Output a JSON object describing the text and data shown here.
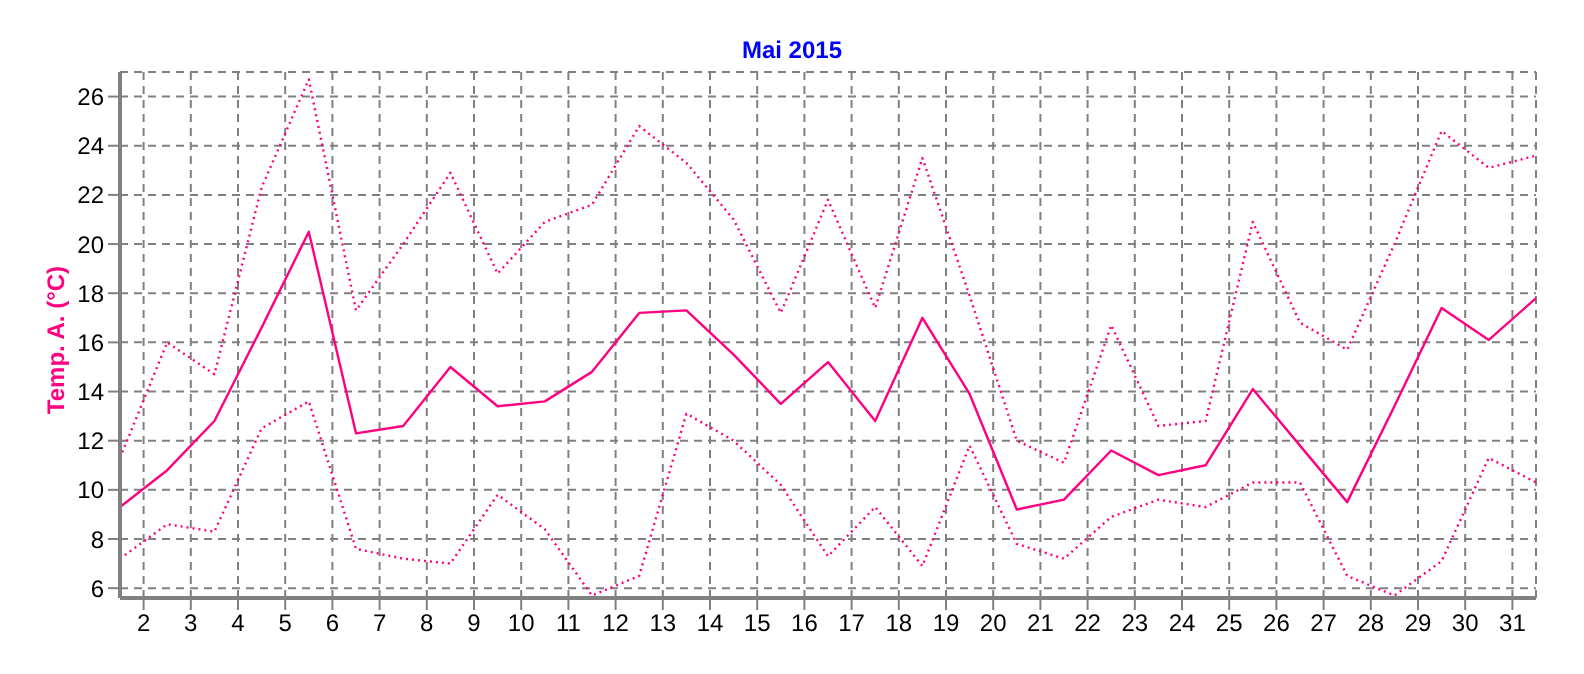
{
  "chart_data": {
    "type": "line",
    "title": "Mai 2015",
    "ylabel": "Temp. A. (°C)",
    "x": [
      1.5,
      2.5,
      3.5,
      4.5,
      5.5,
      6.5,
      7.5,
      8.5,
      9.5,
      10.5,
      11.5,
      12.5,
      13.5,
      14.5,
      15.5,
      16.5,
      17.5,
      18.5,
      19.5,
      20.5,
      21.5,
      22.5,
      23.5,
      24.5,
      25.5,
      26.5,
      27.5,
      28.5,
      29.5,
      30.5,
      31.5
    ],
    "series": [
      {
        "color": "#ff0080",
        "line_style": "dotted",
        "values": [
          11.3,
          16.0,
          14.7,
          22.3,
          26.7,
          17.3,
          20.0,
          22.9,
          18.8,
          20.9,
          21.6,
          24.8,
          23.3,
          21.0,
          17.2,
          21.8,
          17.4,
          23.5,
          17.9,
          12.0,
          11.1,
          16.7,
          12.6,
          12.8,
          20.9,
          16.8,
          15.7,
          20.0,
          24.6,
          23.1,
          23.6
        ]
      },
      {
        "color": "#ff0080",
        "line_style": "solid",
        "values": [
          9.3,
          10.8,
          12.8,
          16.6,
          20.5,
          12.3,
          12.6,
          15.0,
          13.4,
          13.6,
          14.8,
          17.2,
          17.3,
          15.5,
          13.5,
          15.2,
          12.8,
          17.0,
          13.9,
          9.2,
          9.6,
          11.6,
          10.6,
          11.0,
          14.1,
          11.8,
          9.5,
          13.4,
          17.4,
          16.1,
          17.8
        ]
      },
      {
        "color": "#ff0080",
        "line_style": "dotted",
        "values": [
          7.2,
          8.6,
          8.3,
          12.5,
          13.6,
          7.6,
          7.2,
          7.0,
          9.8,
          8.4,
          5.7,
          6.5,
          13.1,
          12.0,
          10.2,
          7.3,
          9.3,
          6.9,
          11.8,
          7.8,
          7.2,
          8.9,
          9.6,
          9.3,
          10.3,
          10.3,
          6.5,
          5.7,
          7.1,
          11.3,
          10.3
        ]
      }
    ],
    "xlim": [
      1.5,
      31.5
    ],
    "xticks": [
      2,
      3,
      4,
      5,
      6,
      7,
      8,
      9,
      10,
      11,
      12,
      13,
      14,
      15,
      16,
      17,
      18,
      19,
      20,
      21,
      22,
      23,
      24,
      25,
      26,
      27,
      28,
      29,
      30,
      31
    ],
    "ylim": [
      5.6,
      27
    ],
    "yticks": [
      6,
      8,
      10,
      12,
      14,
      16,
      18,
      20,
      22,
      24,
      26
    ],
    "grid": true,
    "marker": "none",
    "legend": false
  }
}
